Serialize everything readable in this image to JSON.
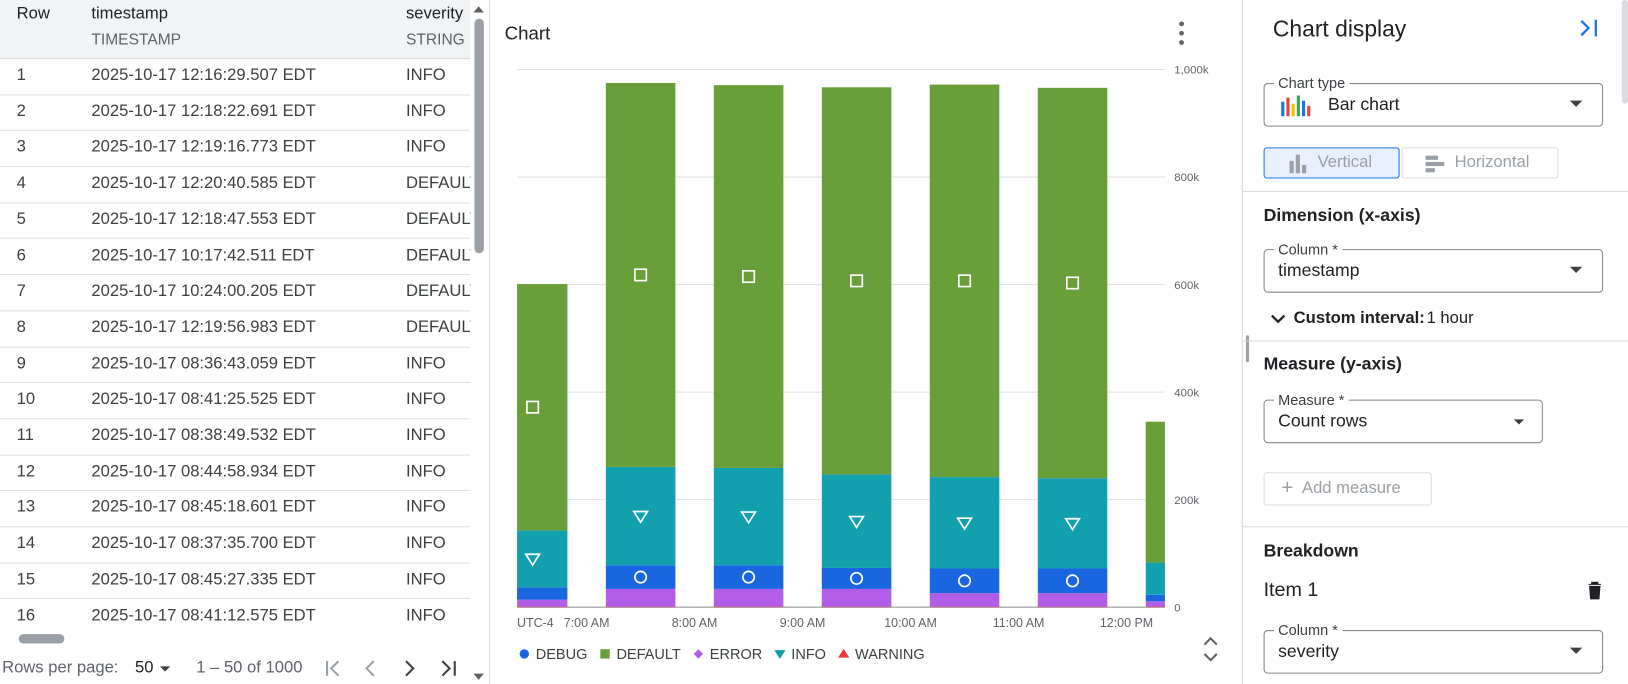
{
  "table": {
    "columns": [
      {
        "name": "Row"
      },
      {
        "name": "timestamp",
        "type": "TIMESTAMP"
      },
      {
        "name": "severity",
        "type": "STRING"
      }
    ],
    "rows": [
      [
        1,
        "2025-10-17 12:16:29.507 EDT",
        "INFO"
      ],
      [
        2,
        "2025-10-17 12:18:22.691 EDT",
        "INFO"
      ],
      [
        3,
        "2025-10-17 12:19:16.773 EDT",
        "INFO"
      ],
      [
        4,
        "2025-10-17 12:20:40.585 EDT",
        "DEFAULT"
      ],
      [
        5,
        "2025-10-17 12:18:47.553 EDT",
        "DEFAULT"
      ],
      [
        6,
        "2025-10-17 10:17:42.511 EDT",
        "DEFAULT"
      ],
      [
        7,
        "2025-10-17 10:24:00.205 EDT",
        "DEFAULT"
      ],
      [
        8,
        "2025-10-17 12:19:56.983 EDT",
        "DEFAULT"
      ],
      [
        9,
        "2025-10-17 08:36:43.059 EDT",
        "INFO"
      ],
      [
        10,
        "2025-10-17 08:41:25.525 EDT",
        "INFO"
      ],
      [
        11,
        "2025-10-17 08:38:49.532 EDT",
        "INFO"
      ],
      [
        12,
        "2025-10-17 08:44:58.934 EDT",
        "INFO"
      ],
      [
        13,
        "2025-10-17 08:45:18.601 EDT",
        "INFO"
      ],
      [
        14,
        "2025-10-17 08:37:35.700 EDT",
        "INFO"
      ],
      [
        15,
        "2025-10-17 08:45:27.335 EDT",
        "INFO"
      ],
      [
        16,
        "2025-10-17 08:41:12.575 EDT",
        "INFO"
      ]
    ]
  },
  "pagination": {
    "label": "Rows per page:",
    "page_size": 50,
    "range": "1 – 50 of 1000"
  },
  "chart_data": {
    "type": "bar",
    "stacked": true,
    "title": "Chart",
    "categories": [
      null,
      null,
      null,
      null,
      null,
      null,
      null
    ],
    "x_tick_labels": [
      "UTC-4",
      "7:00 AM",
      "8:00 AM",
      "9:00 AM",
      "10:00 AM",
      "11:00 AM",
      "12:00 PM"
    ],
    "series": [
      {
        "name": "WARNING",
        "color": "#e53935",
        "marker": "triangle-up",
        "values": [
          1000,
          1000,
          1000,
          1000,
          1000,
          1000,
          1000
        ]
      },
      {
        "name": "ERROR",
        "color": "#b35ee8",
        "marker": "diamond",
        "values": [
          13000,
          33000,
          33000,
          33000,
          25000,
          25000,
          10000
        ]
      },
      {
        "name": "DEBUG",
        "color": "#1a66e0",
        "marker": "circle",
        "values": [
          23000,
          44000,
          44000,
          39000,
          46000,
          46000,
          12000
        ]
      },
      {
        "name": "INFO",
        "color": "#13a0ae",
        "marker": "triangle-down",
        "values": [
          106000,
          183000,
          181000,
          174000,
          170000,
          168000,
          60000
        ]
      },
      {
        "name": "DEFAULT",
        "color": "#689f38",
        "marker": "square",
        "values": [
          458000,
          714000,
          712000,
          720000,
          730000,
          726000,
          262000
        ]
      }
    ],
    "ylim": [
      0,
      1000000
    ],
    "yticks": [
      0,
      {
        "value": 200000,
        "label": "200k"
      },
      {
        "value": 400000,
        "label": "400k"
      },
      {
        "value": 600000,
        "label": "600k"
      },
      {
        "value": 800000,
        "label": "800k"
      },
      {
        "value": 1000000,
        "label": "1,000k"
      }
    ],
    "grid": true,
    "legend": "bottom"
  },
  "settings": {
    "title": "Chart display",
    "chart_type": {
      "label": "Chart type",
      "value": "Bar chart"
    },
    "orientation": [
      "Vertical",
      "Horizontal"
    ],
    "dimension": {
      "heading": "Dimension (x-axis)",
      "label": "Column *",
      "value": "timestamp",
      "interval_label": "Custom interval:",
      "interval_value": "1 hour"
    },
    "measure": {
      "heading": "Measure (y-axis)",
      "label": "Measure *",
      "value": "Count rows",
      "add": "Add measure"
    },
    "breakdown": {
      "heading": "Breakdown",
      "item": "Item 1",
      "label": "Column *",
      "value": "severity"
    }
  }
}
